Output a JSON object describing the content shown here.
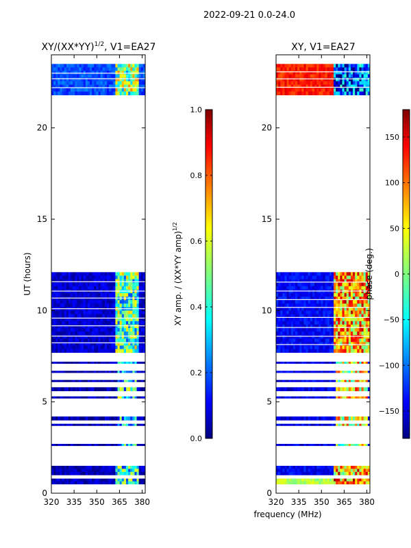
{
  "figure": {
    "suptitle": "2022-09-21 0.0-24.0",
    "xlabel": "frequency (MHz)",
    "colormap": "jet"
  },
  "chart_data": [
    {
      "type": "heatmap",
      "title_main": "XY/(XX*YY)",
      "title_exp": "1/2",
      "title_tail": ", V1=EA27",
      "ylabel": "UT (hours)",
      "x_range": [
        320,
        382
      ],
      "x_ticks": [
        320,
        335,
        350,
        365,
        380
      ],
      "y_range": [
        0,
        24
      ],
      "y_ticks": [
        0,
        5,
        10,
        15,
        20
      ],
      "colorbar": {
        "label_main": "XY amp. / (XX*YY amp)",
        "label_exp": "1/2",
        "range": [
          0.0,
          1.0
        ],
        "ticks": [
          "0.0",
          "0.2",
          "0.4",
          "0.6",
          "0.8",
          "1.0"
        ]
      },
      "rows": [
        {
          "from": 21.8,
          "to": 23.5,
          "base": 0.2,
          "hi_from": 362,
          "hi_to": 378,
          "hi": 0.5
        },
        {
          "from": 7.7,
          "to": 12.1,
          "base": 0.08,
          "hi_from": 362,
          "hi_to": 378,
          "hi": 0.45
        },
        {
          "from": 7.1,
          "to": 7.2,
          "base": 0.05,
          "hi_from": 363,
          "hi_to": 377,
          "hi": 0.35
        },
        {
          "from": 6.6,
          "to": 6.7,
          "base": 0.05,
          "hi_from": 363,
          "hi_to": 377,
          "hi": 0.35
        },
        {
          "from": 6.1,
          "to": 6.2,
          "base": 0.05,
          "hi_from": 363,
          "hi_to": 377,
          "hi": 0.35
        },
        {
          "from": 5.6,
          "to": 5.8,
          "base": 0.05,
          "hi_from": 363,
          "hi_to": 377,
          "hi": 0.4
        },
        {
          "from": 5.2,
          "to": 5.3,
          "base": 0.05,
          "hi_from": 363,
          "hi_to": 377,
          "hi": 0.4
        },
        {
          "from": 4.0,
          "to": 4.2,
          "base": 0.05,
          "hi_from": 363,
          "hi_to": 377,
          "hi": 0.35
        },
        {
          "from": 3.7,
          "to": 3.8,
          "base": 0.05,
          "hi_from": 363,
          "hi_to": 377,
          "hi": 0.35
        },
        {
          "from": 2.6,
          "to": 2.7,
          "base": 0.05,
          "hi_from": 363,
          "hi_to": 377,
          "hi": 0.35
        },
        {
          "from": 1.0,
          "to": 1.5,
          "base": 0.06,
          "hi_from": 362,
          "hi_to": 378,
          "hi": 0.4
        },
        {
          "from": 0.5,
          "to": 0.8,
          "base": 0.06,
          "hi_from": 362,
          "hi_to": 378,
          "hi": 0.4
        }
      ]
    },
    {
      "type": "heatmap",
      "title_main": "XY, V1=EA27",
      "title_exp": "",
      "title_tail": "",
      "ylabel": "",
      "x_range": [
        320,
        382
      ],
      "x_ticks": [
        320,
        335,
        350,
        365,
        380
      ],
      "y_range": [
        0,
        24
      ],
      "y_ticks": [
        0,
        5,
        10,
        15,
        20
      ],
      "colorbar": {
        "label_main": "phase (deg.)",
        "label_exp": "",
        "range": [
          -180,
          180
        ],
        "ticks": [
          "−150",
          "−100",
          "−50",
          "0",
          "50",
          "100",
          "150"
        ]
      },
      "rows": [
        {
          "from": 21.8,
          "to": 23.5,
          "base": 0.85,
          "hi_from": 358,
          "hi_to": 382,
          "hi": 0.2
        },
        {
          "from": 7.7,
          "to": 12.1,
          "base": 0.12,
          "hi_from": 358,
          "hi_to": 382,
          "hi": 0.7
        },
        {
          "from": 7.1,
          "to": 7.2,
          "base": 0.1,
          "hi_from": 360,
          "hi_to": 380,
          "hi": 0.6
        },
        {
          "from": 6.6,
          "to": 6.7,
          "base": 0.1,
          "hi_from": 360,
          "hi_to": 380,
          "hi": 0.6
        },
        {
          "from": 6.1,
          "to": 6.2,
          "base": 0.1,
          "hi_from": 360,
          "hi_to": 380,
          "hi": 0.6
        },
        {
          "from": 5.6,
          "to": 5.8,
          "base": 0.1,
          "hi_from": 360,
          "hi_to": 380,
          "hi": 0.65
        },
        {
          "from": 5.2,
          "to": 5.3,
          "base": 0.1,
          "hi_from": 360,
          "hi_to": 380,
          "hi": 0.65
        },
        {
          "from": 4.0,
          "to": 4.2,
          "base": 0.1,
          "hi_from": 360,
          "hi_to": 380,
          "hi": 0.6
        },
        {
          "from": 3.7,
          "to": 3.8,
          "base": 0.1,
          "hi_from": 360,
          "hi_to": 380,
          "hi": 0.6
        },
        {
          "from": 2.6,
          "to": 2.7,
          "base": 0.1,
          "hi_from": 360,
          "hi_to": 380,
          "hi": 0.55
        },
        {
          "from": 1.0,
          "to": 1.5,
          "base": 0.12,
          "hi_from": 358,
          "hi_to": 382,
          "hi": 0.7
        },
        {
          "from": 0.5,
          "to": 0.8,
          "base": 0.55,
          "hi_from": 358,
          "hi_to": 382,
          "hi": 0.75
        }
      ]
    }
  ]
}
